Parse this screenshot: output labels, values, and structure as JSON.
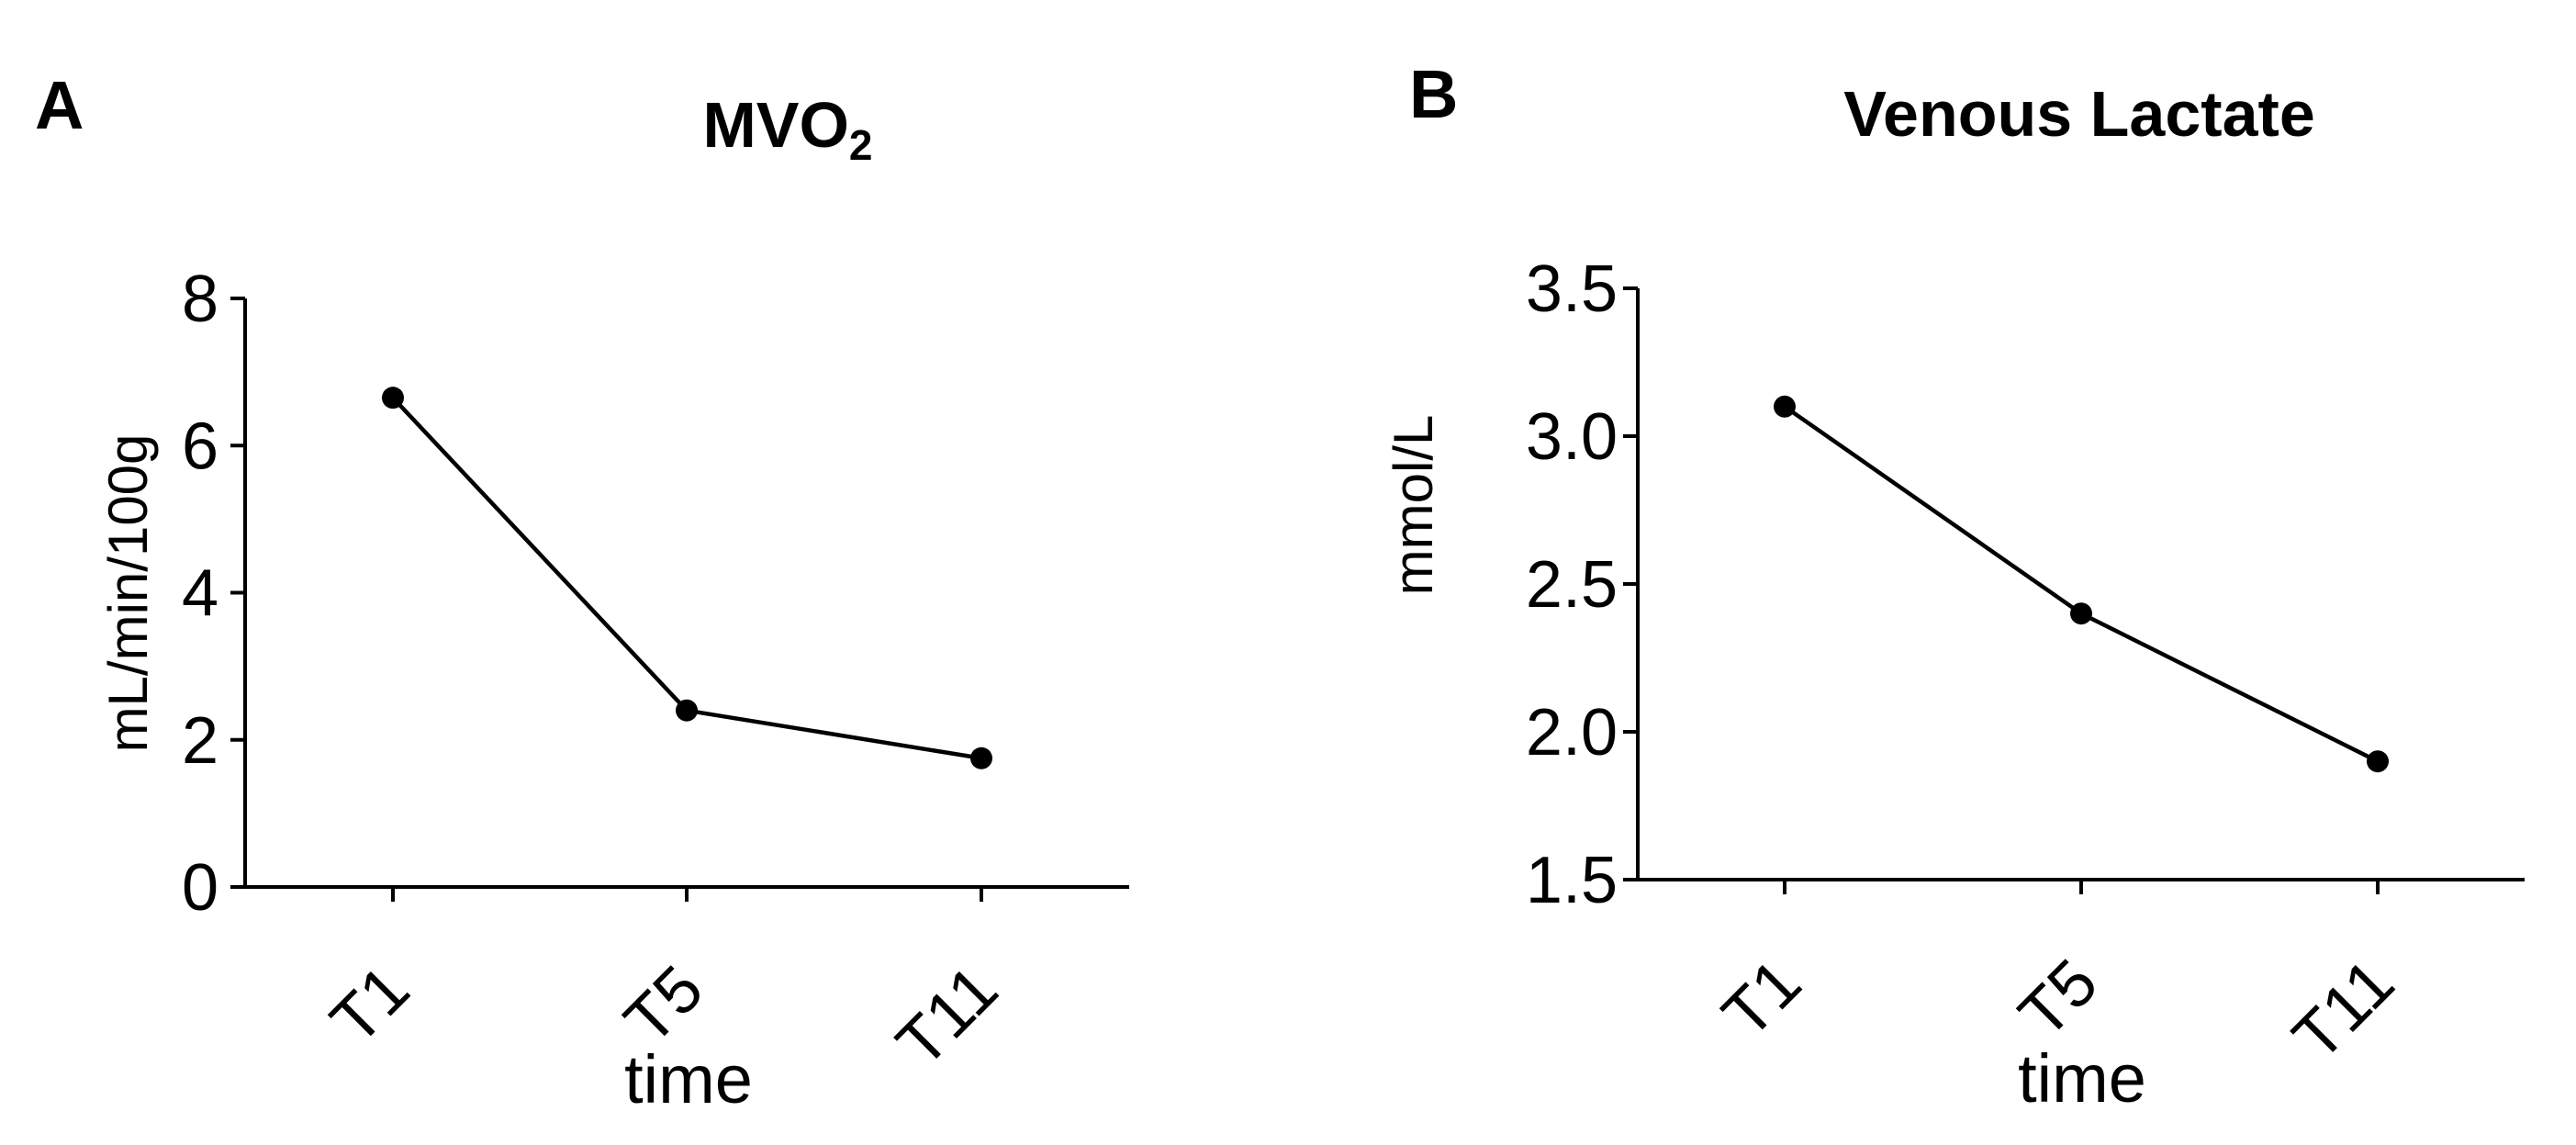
{
  "chart_data": [
    {
      "panel": "A",
      "type": "line",
      "title": "MVO",
      "title_subscript": "2",
      "xlabel": "time",
      "ylabel": "mL/min/100g",
      "categories": [
        "T1",
        "T5",
        "T11"
      ],
      "series": [
        {
          "name": "MVO2",
          "values": [
            6.65,
            2.4,
            1.75
          ]
        }
      ],
      "ylim": [
        0,
        8
      ],
      "yticks": [
        0,
        2,
        4,
        6,
        8
      ],
      "ytick_labels": [
        "0",
        "2",
        "4",
        "6",
        "8"
      ]
    },
    {
      "panel": "B",
      "type": "line",
      "title": "Venous Lactate",
      "xlabel": "time",
      "ylabel": "mmol/L",
      "categories": [
        "T1",
        "T5",
        "T11"
      ],
      "series": [
        {
          "name": "Venous Lactate",
          "values": [
            3.1,
            2.4,
            1.9
          ]
        }
      ],
      "ylim": [
        1.5,
        3.5
      ],
      "yticks": [
        1.5,
        2.0,
        2.5,
        3.0,
        3.5
      ],
      "ytick_labels": [
        "1.5",
        "2.0",
        "2.5",
        "3.0",
        "3.5"
      ]
    }
  ]
}
